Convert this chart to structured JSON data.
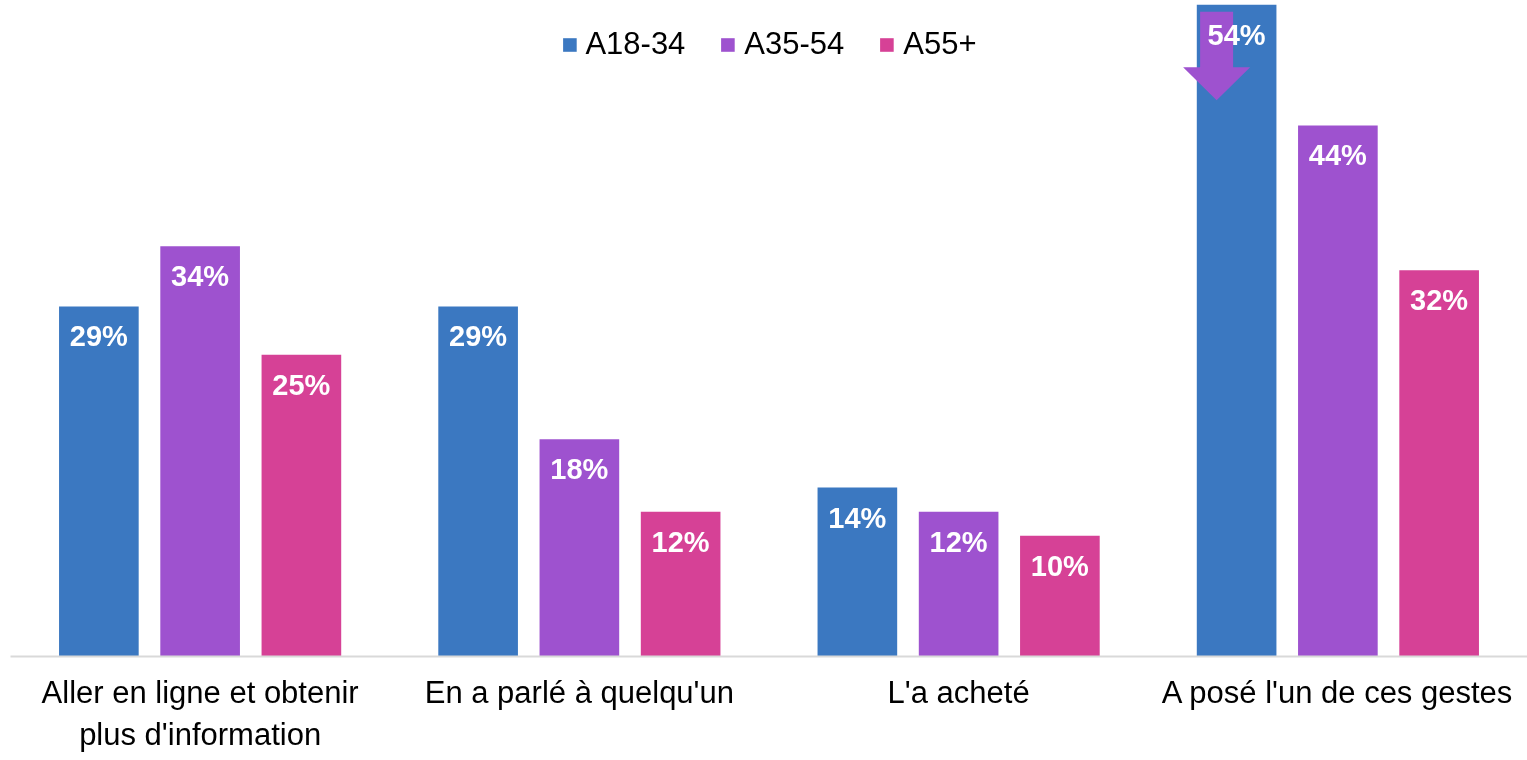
{
  "chart_data": {
    "type": "bar",
    "categories": [
      "Aller en ligne et obtenir plus d'information",
      "En a parlé à quelqu'un",
      "L'a acheté",
      "A posé l'un de ces gestes"
    ],
    "series": [
      {
        "name": "A18-34",
        "color": "#3b78c1",
        "values": [
          29,
          29,
          14,
          54
        ],
        "value_labels": [
          "29%",
          "29%",
          "14%",
          "54%"
        ]
      },
      {
        "name": "A35-54",
        "color": "#9e52cf",
        "values": [
          34,
          18,
          12,
          44
        ],
        "value_labels": [
          "34%",
          "18%",
          "12%",
          "44%"
        ]
      },
      {
        "name": "A55+",
        "color": "#d64196",
        "values": [
          25,
          12,
          10,
          32
        ],
        "value_labels": [
          "25%",
          "12%",
          "10%",
          "32%"
        ]
      }
    ],
    "legend": "top"
  }
}
